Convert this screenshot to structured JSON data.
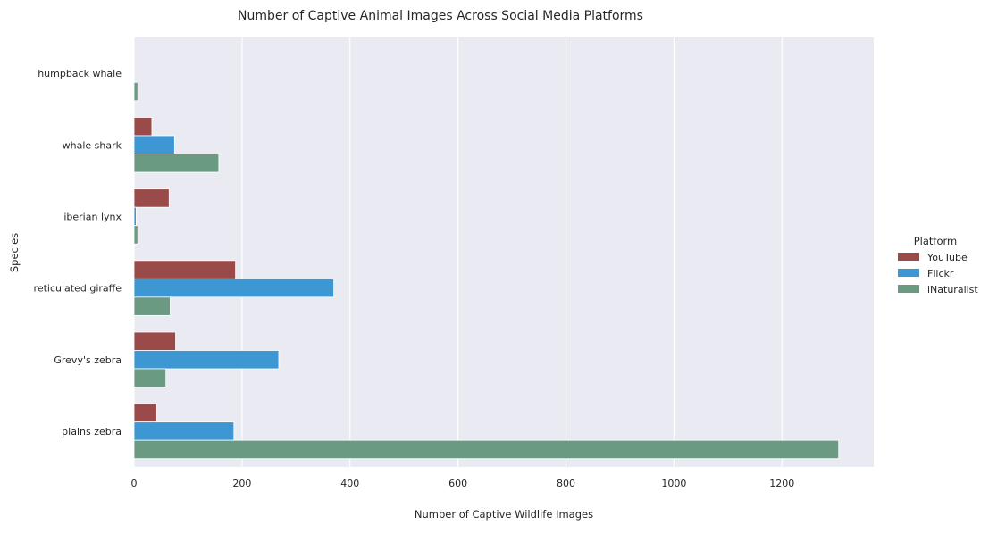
{
  "chart_data": {
    "type": "bar",
    "orientation": "horizontal",
    "title": "Number of Captive Animal Images Across Social Media Platforms",
    "xlabel": "Number of Captive Wildlife Images",
    "ylabel": "Species",
    "categories": [
      "humpback whale",
      "whale shark",
      "iberian lynx",
      "reticulated giraffe",
      "Grevy's zebra",
      "plains zebra"
    ],
    "series": [
      {
        "name": "YouTube",
        "color": "#9b4a4a",
        "values": [
          0,
          33,
          65,
          188,
          77,
          42
        ]
      },
      {
        "name": "Flickr",
        "color": "#3d97d3",
        "values": [
          0,
          75,
          4,
          370,
          268,
          185
        ]
      },
      {
        "name": "iNaturalist",
        "color": "#6a9a82",
        "values": [
          7,
          157,
          7,
          67,
          59,
          1305
        ]
      }
    ],
    "xlim": [
      0,
      1370
    ],
    "xticks": [
      0,
      200,
      400,
      600,
      800,
      1000,
      1200
    ],
    "grid": true,
    "legend": {
      "title": "Platform",
      "position": "right"
    },
    "background_color": "#eaeaf2",
    "grid_color": "#ffffff"
  }
}
